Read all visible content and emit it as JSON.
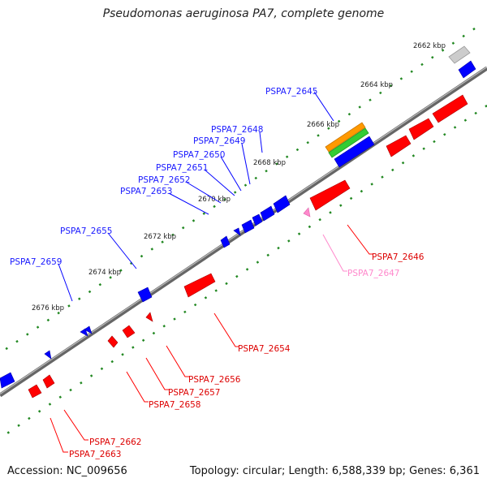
{
  "title": "Pseudomonas aeruginosa PA7, complete genome",
  "footer": {
    "accession": "Accession: NC_009656",
    "summary": "Topology: circular; Length: 6,588,339 bp; Genes: 6,361"
  },
  "colors": {
    "forward_gene": "#0000ff",
    "reverse_gene": "#ff0000",
    "pseudogene": "#ff88cc",
    "backbone": "#888888",
    "dot_track": "#228822",
    "rrna_orange": "#ff9900",
    "rrna_green": "#33cc33",
    "grey_feature": "#bbbbbb"
  },
  "scale_ticks": [
    "2662 kbp",
    "2664 kbp",
    "2666 kbp",
    "2668 kbp",
    "2670 kbp",
    "2672 kbp",
    "2674 kbp",
    "2676 kbp"
  ],
  "forward_labels": [
    "PSPA7_2645",
    "PSPA7_2648",
    "PSPA7_2649",
    "PSPA7_2650",
    "PSPA7_2651",
    "PSPA7_2652",
    "PSPA7_2653",
    "PSPA7_2655",
    "PSPA7_2659"
  ],
  "reverse_labels": [
    "PSPA7_2646",
    "PSPA7_2647",
    "PSPA7_2654",
    "PSPA7_2656",
    "PSPA7_2657",
    "PSPA7_2658",
    "PSPA7_2662",
    "PSPA7_2663"
  ]
}
